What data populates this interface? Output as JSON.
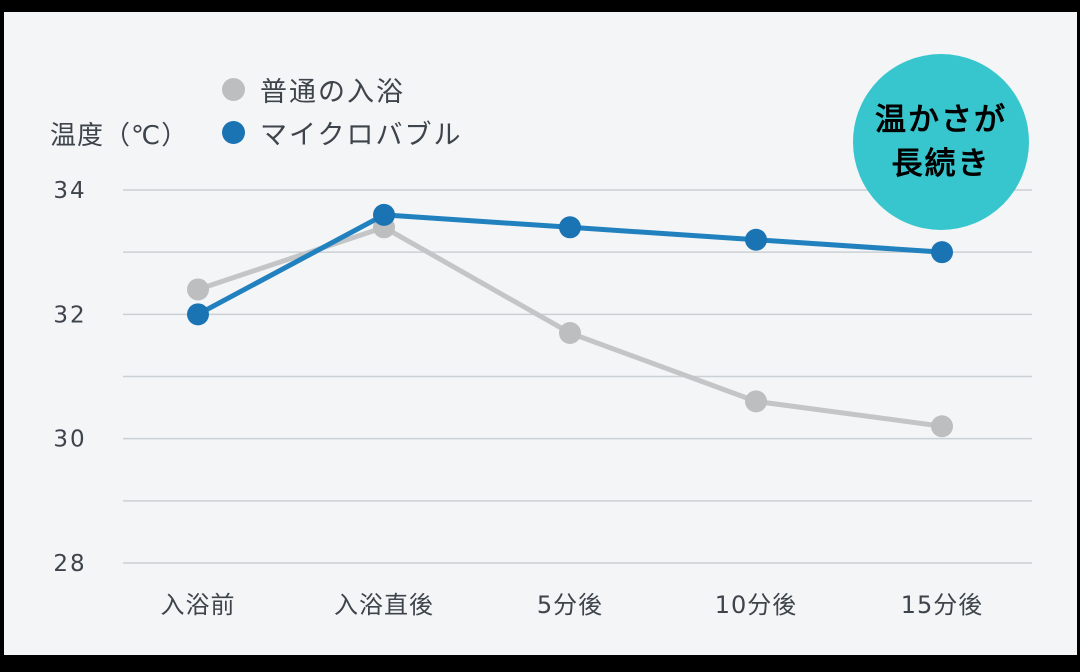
{
  "colors": {
    "background": "#000000",
    "panel_bg": "#f3f5f7",
    "grid": "#cbd0d4",
    "axis_text": "#3e444b",
    "gray_series": "#bcbec0",
    "gray_series_line": "#c3c5c7",
    "blue_series": "#1a73b3",
    "blue_series_line": "#2181be",
    "badge_bg": "#37c6cd",
    "badge_text": "#ffffff"
  },
  "y_axis_title": "温度（℃）",
  "legend": {
    "items": [
      {
        "label": "普通の入浴",
        "color": "#bcbec0"
      },
      {
        "label": "マイクロバブル",
        "color": "#1a73b3"
      }
    ]
  },
  "badge": {
    "line1": "温かさが",
    "line2": "長続き"
  },
  "chart_data": {
    "type": "line",
    "title": "",
    "ylabel": "温度（℃）",
    "xlabel": "",
    "categories": [
      "入浴前",
      "入浴直後",
      "5分後",
      "10分後",
      "15分後"
    ],
    "series": [
      {
        "name": "普通の入浴",
        "color": "#bcbec0",
        "line_color": "#c3c5c7",
        "values": [
          32.4,
          33.4,
          31.7,
          30.6,
          30.2
        ]
      },
      {
        "name": "マイクロバブル",
        "color": "#1a73b3",
        "line_color": "#2181be",
        "values": [
          32.0,
          33.6,
          33.4,
          33.2,
          33.0
        ]
      }
    ],
    "ylim": [
      28,
      34
    ],
    "yticks": [
      28,
      30,
      32,
      34
    ],
    "grid_interval": 1,
    "grid": true,
    "legend_position": "top-left"
  }
}
